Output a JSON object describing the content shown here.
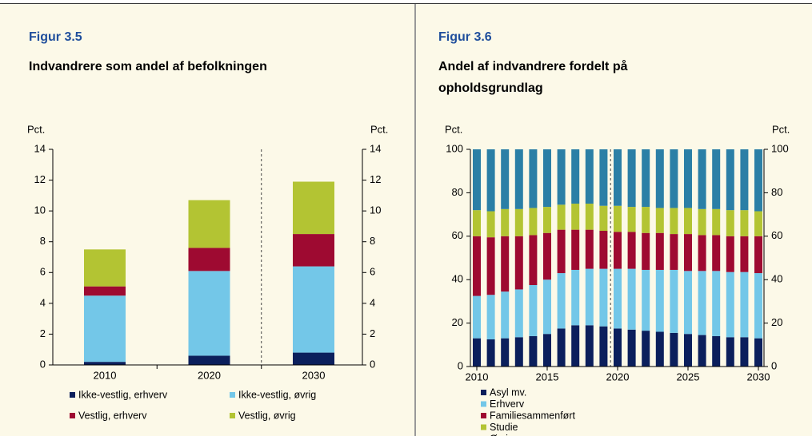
{
  "chart_data": [
    {
      "type": "stacked_bar",
      "figure_label": "Figur 3.5",
      "title": "Indvandrere som andel af befolkningen",
      "y_axis_label": "Pct.",
      "y2_axis_label": "Pct.",
      "categories": [
        "2010",
        "2020",
        "2030"
      ],
      "series": [
        {
          "name": "Ikke-vestlig, erhverv",
          "color": "#0b1f5c",
          "values": [
            0.2,
            0.6,
            0.8
          ]
        },
        {
          "name": "Ikke-vestlig, øvrig",
          "color": "#73c7e8",
          "values": [
            4.3,
            5.5,
            5.6
          ]
        },
        {
          "name": "Vestlig, erhverv",
          "color": "#9e0a31",
          "values": [
            0.6,
            1.5,
            2.1
          ]
        },
        {
          "name": "Vestlig, øvrig",
          "color": "#b3c433",
          "values": [
            2.4,
            3.1,
            3.4
          ]
        }
      ],
      "ylim": [
        0,
        14
      ],
      "yticks": [
        0,
        2,
        4,
        6,
        8,
        10,
        12,
        14
      ],
      "y2lim": [
        0,
        14
      ],
      "y2ticks": [
        0,
        2,
        4,
        6,
        8,
        10,
        12,
        14
      ]
    },
    {
      "type": "stacked_bar",
      "figure_label": "Figur 3.6",
      "title": "Andel af indvandrere fordelt på opholdsgrundlag",
      "y_axis_label": "Pct.",
      "y2_axis_label": "Pct.",
      "categories": [
        "2010",
        null,
        null,
        null,
        null,
        "2015",
        null,
        null,
        null,
        null,
        "2020",
        null,
        null,
        null,
        null,
        "2025",
        null,
        null,
        null,
        null,
        "2030"
      ],
      "series": [
        {
          "name": "Asyl mv.",
          "color": "#0b1f5c",
          "values": [
            13,
            12.5,
            13,
            13.5,
            14,
            15,
            17.5,
            19,
            19,
            18.5,
            17.5,
            17,
            16.5,
            16,
            15.5,
            15,
            14.5,
            14,
            13.5,
            13.5,
            13
          ]
        },
        {
          "name": "Erhverv",
          "color": "#73c7e8",
          "values": [
            19.5,
            20.5,
            21.5,
            22,
            23.5,
            25,
            25.5,
            25.5,
            26,
            26.5,
            27.5,
            28,
            28,
            28.5,
            29,
            29,
            29.5,
            30,
            30,
            30,
            30
          ]
        },
        {
          "name": "Familiesammenført",
          "color": "#9e0a31",
          "values": [
            27.5,
            26.5,
            25.5,
            24.5,
            23,
            21.5,
            20,
            18.5,
            18,
            17.5,
            17,
            17,
            17,
            17,
            16.5,
            17,
            16.5,
            16.5,
            16.5,
            16.5,
            17
          ]
        },
        {
          "name": "Studie",
          "color": "#b3c433",
          "values": [
            12,
            12,
            12.5,
            12.5,
            12.5,
            12,
            11.5,
            12,
            12,
            11.5,
            12,
            11.5,
            12,
            11.5,
            12,
            12,
            12,
            12,
            12,
            12,
            11.5
          ]
        },
        {
          "name": "Øvrig",
          "color": "#2b7fa6",
          "values": [
            28,
            28.5,
            27.5,
            27.5,
            27,
            26.5,
            25.5,
            25,
            25,
            26,
            26,
            26.5,
            26.5,
            27,
            27,
            27,
            27.5,
            27.5,
            28,
            28,
            28.5
          ]
        }
      ],
      "ylim": [
        0,
        100
      ],
      "yticks": [
        0,
        20,
        40,
        60,
        80,
        100
      ],
      "y2lim": [
        0,
        100
      ],
      "y2ticks": [
        0,
        20,
        40,
        60,
        80,
        100
      ]
    }
  ]
}
